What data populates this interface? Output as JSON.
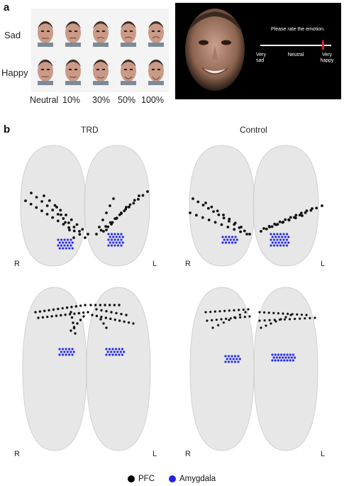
{
  "panel_a": {
    "letter": "a",
    "row_labels": [
      "Sad",
      "Happy"
    ],
    "intensity_labels": [
      "Neutral",
      "10%",
      "30%",
      "50%",
      "100%"
    ],
    "rating_screen": {
      "prompt": "Please rate the emotion.",
      "scale_left": "Very\nsad",
      "scale_mid": "Neutral",
      "scale_right": "Very\nhappy",
      "marker_position": 0.88,
      "marker_color": "#e0202a"
    }
  },
  "panel_b": {
    "letter": "b",
    "group_labels": [
      "TRD",
      "Control"
    ],
    "side_right": "R",
    "side_left": "L",
    "legend": [
      {
        "label": "PFC",
        "color": "#000000"
      },
      {
        "label": "Amygdala",
        "color": "#1f24e0"
      }
    ]
  },
  "colors": {
    "pfc": "#111111",
    "amygdala": "#2a30e6",
    "brain": "#e3e3e3"
  }
}
